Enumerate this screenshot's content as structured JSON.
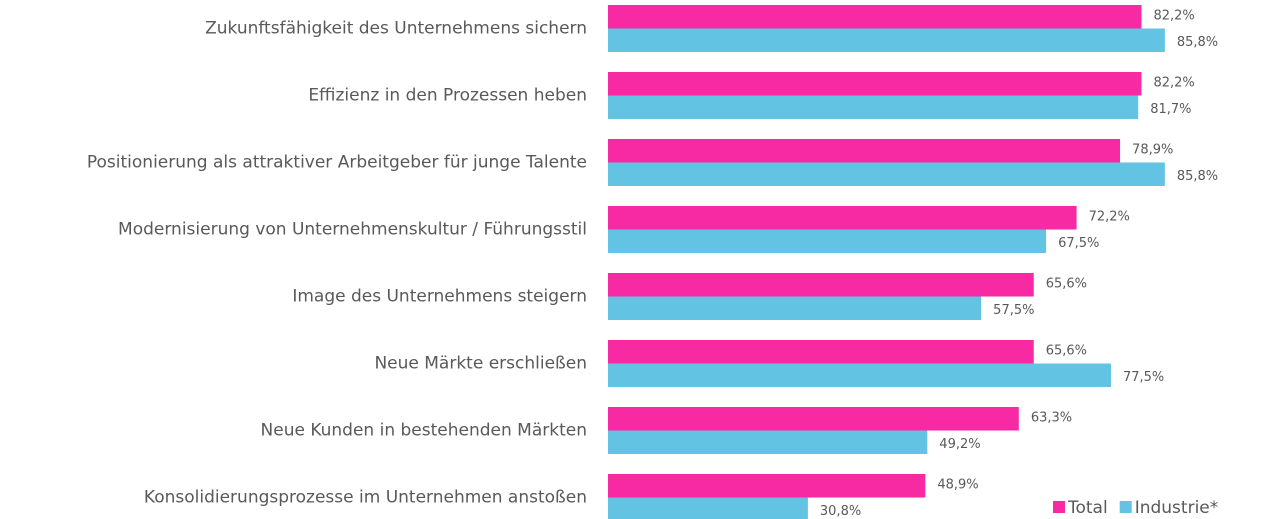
{
  "chart_data": {
    "type": "hbar",
    "categories": [
      "Zukunftsfähigkeit des Unternehmens sichern",
      "Effizienz in den Prozessen heben",
      "Positionierung als attraktiver Arbeitgeber für junge Talente",
      "Modernisierung von Unternehmenskultur / Führungsstil",
      "Image des Unternehmens steigern",
      "Neue Märkte erschließen",
      "Neue Kunden in bestehenden Märkten",
      "Konsolidierungsprozesse im Unternehmen anstoßen"
    ],
    "series": [
      {
        "name": "Total",
        "color": "#f72aa3",
        "values": [
          82.2,
          82.2,
          78.9,
          72.2,
          65.6,
          65.6,
          63.3,
          48.9
        ],
        "value_labels": [
          "82,2%",
          "82,2%",
          "78,9%",
          "72,2%",
          "65,6%",
          "65,6%",
          "63,3%",
          "48,9%"
        ]
      },
      {
        "name": "Industrie*",
        "color": "#62c3e3",
        "values": [
          85.8,
          81.7,
          85.8,
          67.5,
          57.5,
          77.5,
          49.2,
          30.8
        ],
        "value_labels": [
          "85,8%",
          "81,7%",
          "85,8%",
          "67,5%",
          "57,5%",
          "77,5%",
          "49,2%",
          "30,8%"
        ]
      }
    ],
    "xlim": [
      0,
      100
    ],
    "legend": "lower right"
  }
}
